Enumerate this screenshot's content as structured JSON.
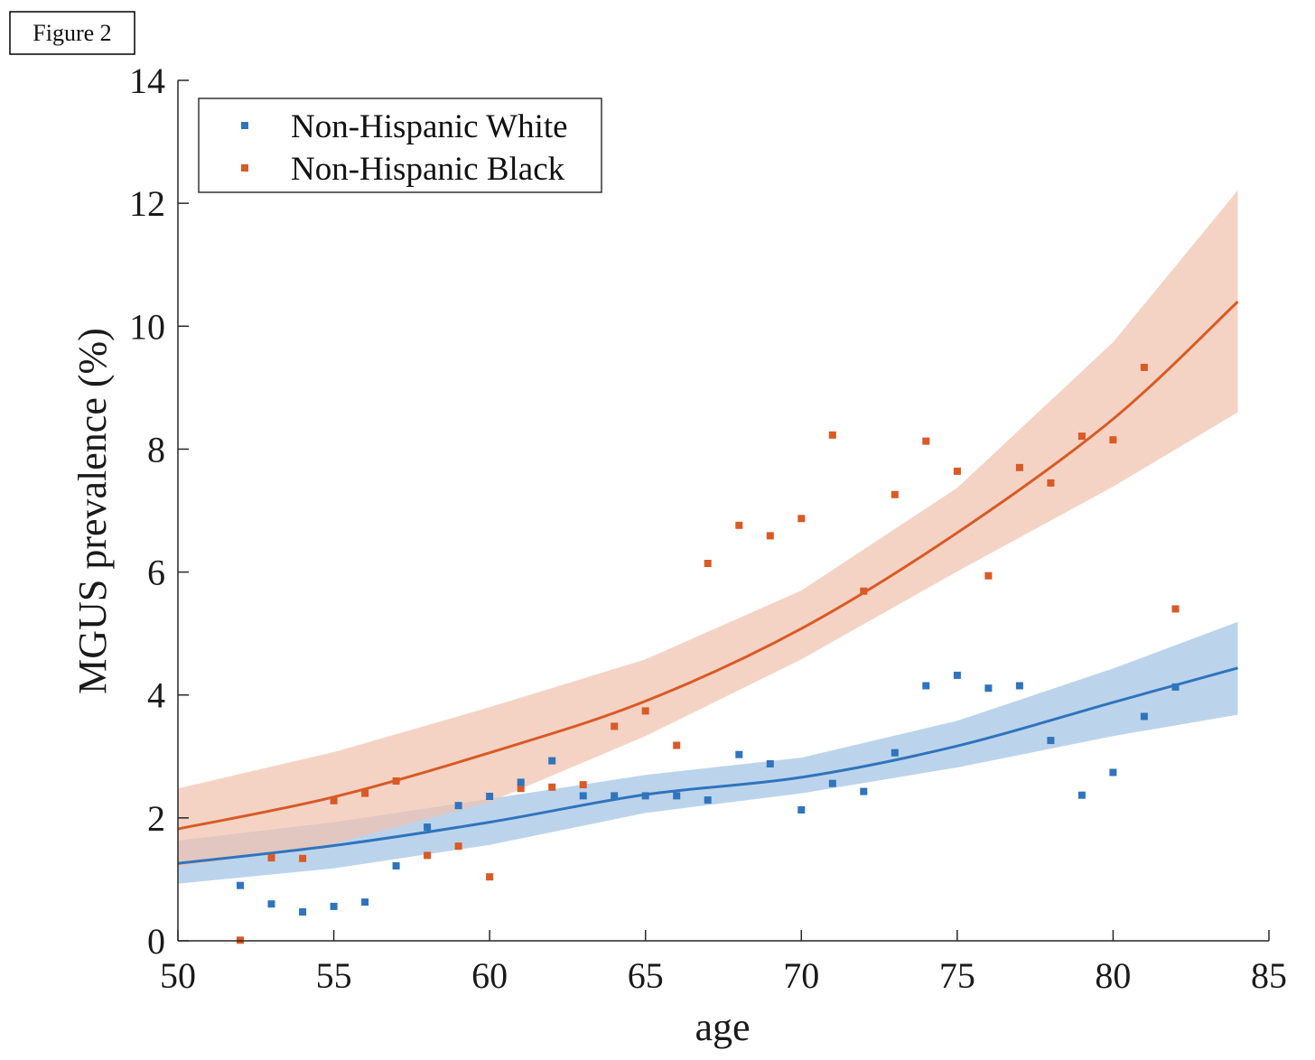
{
  "figure_label": "Figure 2",
  "chart_data": {
    "type": "scatter",
    "xlabel": "age",
    "ylabel": "MGUS prevalence (%)",
    "xlim": [
      50,
      85
    ],
    "ylim": [
      0,
      14
    ],
    "xticks": [
      50,
      55,
      60,
      65,
      70,
      75,
      80,
      85
    ],
    "yticks": [
      0,
      2,
      4,
      6,
      8,
      10,
      12,
      14
    ],
    "grid": false,
    "legend_position": "top-left",
    "series": [
      {
        "name": "Non-Hispanic White",
        "color": "#2f74bd",
        "band_color": "#a9c8e6",
        "points": [
          [
            52,
            0.9
          ],
          [
            53,
            0.6
          ],
          [
            54,
            0.47
          ],
          [
            55,
            0.56
          ],
          [
            56,
            0.63
          ],
          [
            57,
            1.22
          ],
          [
            58,
            1.85
          ],
          [
            59,
            2.2
          ],
          [
            60,
            2.35
          ],
          [
            61,
            2.58
          ],
          [
            62,
            2.93
          ],
          [
            63,
            2.36
          ],
          [
            64,
            2.36
          ],
          [
            65,
            2.36
          ],
          [
            66,
            2.36
          ],
          [
            67,
            2.29
          ],
          [
            68,
            3.03
          ],
          [
            69,
            2.88
          ],
          [
            70,
            2.13
          ],
          [
            71,
            2.56
          ],
          [
            72,
            2.43
          ],
          [
            73,
            3.06
          ],
          [
            74,
            4.15
          ],
          [
            75,
            4.32
          ],
          [
            76,
            4.11
          ],
          [
            77,
            4.15
          ],
          [
            78,
            3.26
          ],
          [
            79,
            2.37
          ],
          [
            80,
            2.74
          ],
          [
            81,
            3.65
          ],
          [
            82,
            4.13
          ]
        ],
        "fit_curve": [
          [
            50,
            1.26
          ],
          [
            55,
            1.55
          ],
          [
            60,
            1.93
          ],
          [
            65,
            2.38
          ],
          [
            70,
            2.66
          ],
          [
            75,
            3.17
          ],
          [
            80,
            3.88
          ],
          [
            84,
            4.44
          ]
        ],
        "band_lower": [
          [
            50,
            0.93
          ],
          [
            55,
            1.18
          ],
          [
            60,
            1.56
          ],
          [
            65,
            2.08
          ],
          [
            70,
            2.4
          ],
          [
            75,
            2.82
          ],
          [
            80,
            3.33
          ],
          [
            84,
            3.68
          ]
        ],
        "band_upper": [
          [
            50,
            1.63
          ],
          [
            55,
            1.93
          ],
          [
            60,
            2.31
          ],
          [
            65,
            2.7
          ],
          [
            70,
            2.98
          ],
          [
            75,
            3.58
          ],
          [
            80,
            4.43
          ],
          [
            84,
            5.19
          ]
        ]
      },
      {
        "name": "Non-Hispanic Black",
        "color": "#d95a25",
        "band_color": "#f0c2ae",
        "points": [
          [
            52,
            0.01
          ],
          [
            53,
            1.35
          ],
          [
            54,
            1.34
          ],
          [
            55,
            2.28
          ],
          [
            56,
            2.4
          ],
          [
            57,
            2.6
          ],
          [
            58,
            1.39
          ],
          [
            59,
            1.54
          ],
          [
            60,
            1.04
          ],
          [
            61,
            2.48
          ],
          [
            62,
            2.5
          ],
          [
            63,
            2.54
          ],
          [
            64,
            3.49
          ],
          [
            65,
            3.74
          ],
          [
            66,
            3.18
          ],
          [
            67,
            6.14
          ],
          [
            68,
            6.76
          ],
          [
            69,
            6.59
          ],
          [
            70,
            6.87
          ],
          [
            71,
            8.23
          ],
          [
            72,
            5.69
          ],
          [
            73,
            7.26
          ],
          [
            74,
            8.13
          ],
          [
            75,
            7.64
          ],
          [
            76,
            5.94
          ],
          [
            77,
            7.7
          ],
          [
            78,
            7.45
          ],
          [
            79,
            8.21
          ],
          [
            80,
            8.15
          ],
          [
            81,
            9.33
          ],
          [
            82,
            5.4
          ]
        ],
        "fit_curve": [
          [
            50,
            1.82
          ],
          [
            55,
            2.34
          ],
          [
            60,
            3.06
          ],
          [
            65,
            3.9
          ],
          [
            70,
            5.08
          ],
          [
            75,
            6.64
          ],
          [
            80,
            8.49
          ],
          [
            84,
            10.4
          ]
        ],
        "band_lower": [
          [
            50,
            1.2
          ],
          [
            55,
            1.58
          ],
          [
            60,
            2.26
          ],
          [
            65,
            3.33
          ],
          [
            70,
            4.58
          ],
          [
            75,
            6.01
          ],
          [
            80,
            7.39
          ],
          [
            84,
            8.6
          ]
        ],
        "band_upper": [
          [
            50,
            2.48
          ],
          [
            55,
            3.07
          ],
          [
            60,
            3.8
          ],
          [
            65,
            4.58
          ],
          [
            70,
            5.7
          ],
          [
            75,
            7.37
          ],
          [
            80,
            9.74
          ],
          [
            84,
            12.21
          ]
        ]
      }
    ]
  }
}
